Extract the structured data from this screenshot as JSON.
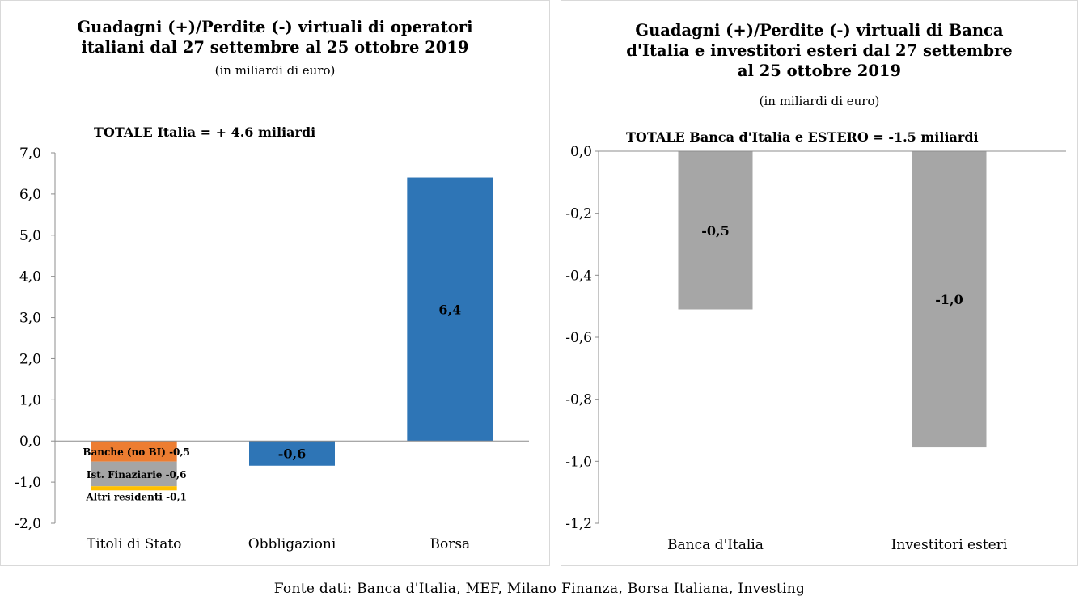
{
  "chart_data": [
    {
      "type": "bar",
      "title": "Guadagni (+)/Perdite (-) virtuali di operatori\nitaliani dal 27 settembre al 25 ottobre 2019",
      "subtitle": "(in miliardi di euro)",
      "annotation": "TOTALE Italia = + 4.6 miliardi",
      "categories": [
        "Titoli di Stato",
        "Obbligazioni",
        "Borsa"
      ],
      "ylim": [
        -2,
        7
      ],
      "yticks": [
        "-2,0",
        "-1,0",
        "0,0",
        "1,0",
        "2,0",
        "3,0",
        "4,0",
        "5,0",
        "6,0",
        "7,0"
      ],
      "ytick_values": [
        -2,
        -1,
        0,
        1,
        2,
        3,
        4,
        5,
        6,
        7
      ],
      "stacked": [
        {
          "category": "Titoli di Stato",
          "segments": [
            {
              "name": "Banche (no BI)",
              "value": -0.5,
              "label": "Banche (no BI) -0,5",
              "color": "#ED7D31"
            },
            {
              "name": "Ist. Finaziarie",
              "value": -0.6,
              "label": "Ist. Finaziarie -0,6",
              "color": "#A5A5A5"
            },
            {
              "name": "Altri residenti",
              "value": -0.1,
              "label": "Altri residenti -0,1",
              "color": "#FFC000"
            }
          ]
        }
      ],
      "bars": [
        {
          "category": "Obbligazioni",
          "value": -0.6,
          "label": "-0,6",
          "color": "#2E75B6"
        },
        {
          "category": "Borsa",
          "value": 6.4,
          "label": "6,4",
          "color": "#2E75B6"
        }
      ]
    },
    {
      "type": "bar",
      "title": "Guadagni (+)/Perdite (-) virtuali di Banca\nd'Italia e investitori esteri dal 27 settembre\nal 25 ottobre 2019",
      "subtitle": "(in miliardi di euro)",
      "annotation": "TOTALE Banca d'Italia e ESTERO = -1.5 miliardi",
      "categories": [
        "Banca d'Italia",
        "Investitori esteri"
      ],
      "values": [
        -0.51,
        -0.955
      ],
      "value_labels": [
        "-0,5",
        "-1,0"
      ],
      "color": "#A6A6A6",
      "ylim": [
        -1.2,
        0
      ],
      "yticks": [
        "0,0",
        "-0,2",
        "-0,4",
        "-0,6",
        "-0,8",
        "-1,0",
        "-1,2"
      ],
      "ytick_values": [
        0,
        -0.2,
        -0.4,
        -0.6,
        -0.8,
        -1.0,
        -1.2
      ]
    }
  ],
  "footer": {
    "source": "Fonte dati: Banca d'Italia, MEF, Milano Finanza, Borsa Italiana, Investing"
  }
}
